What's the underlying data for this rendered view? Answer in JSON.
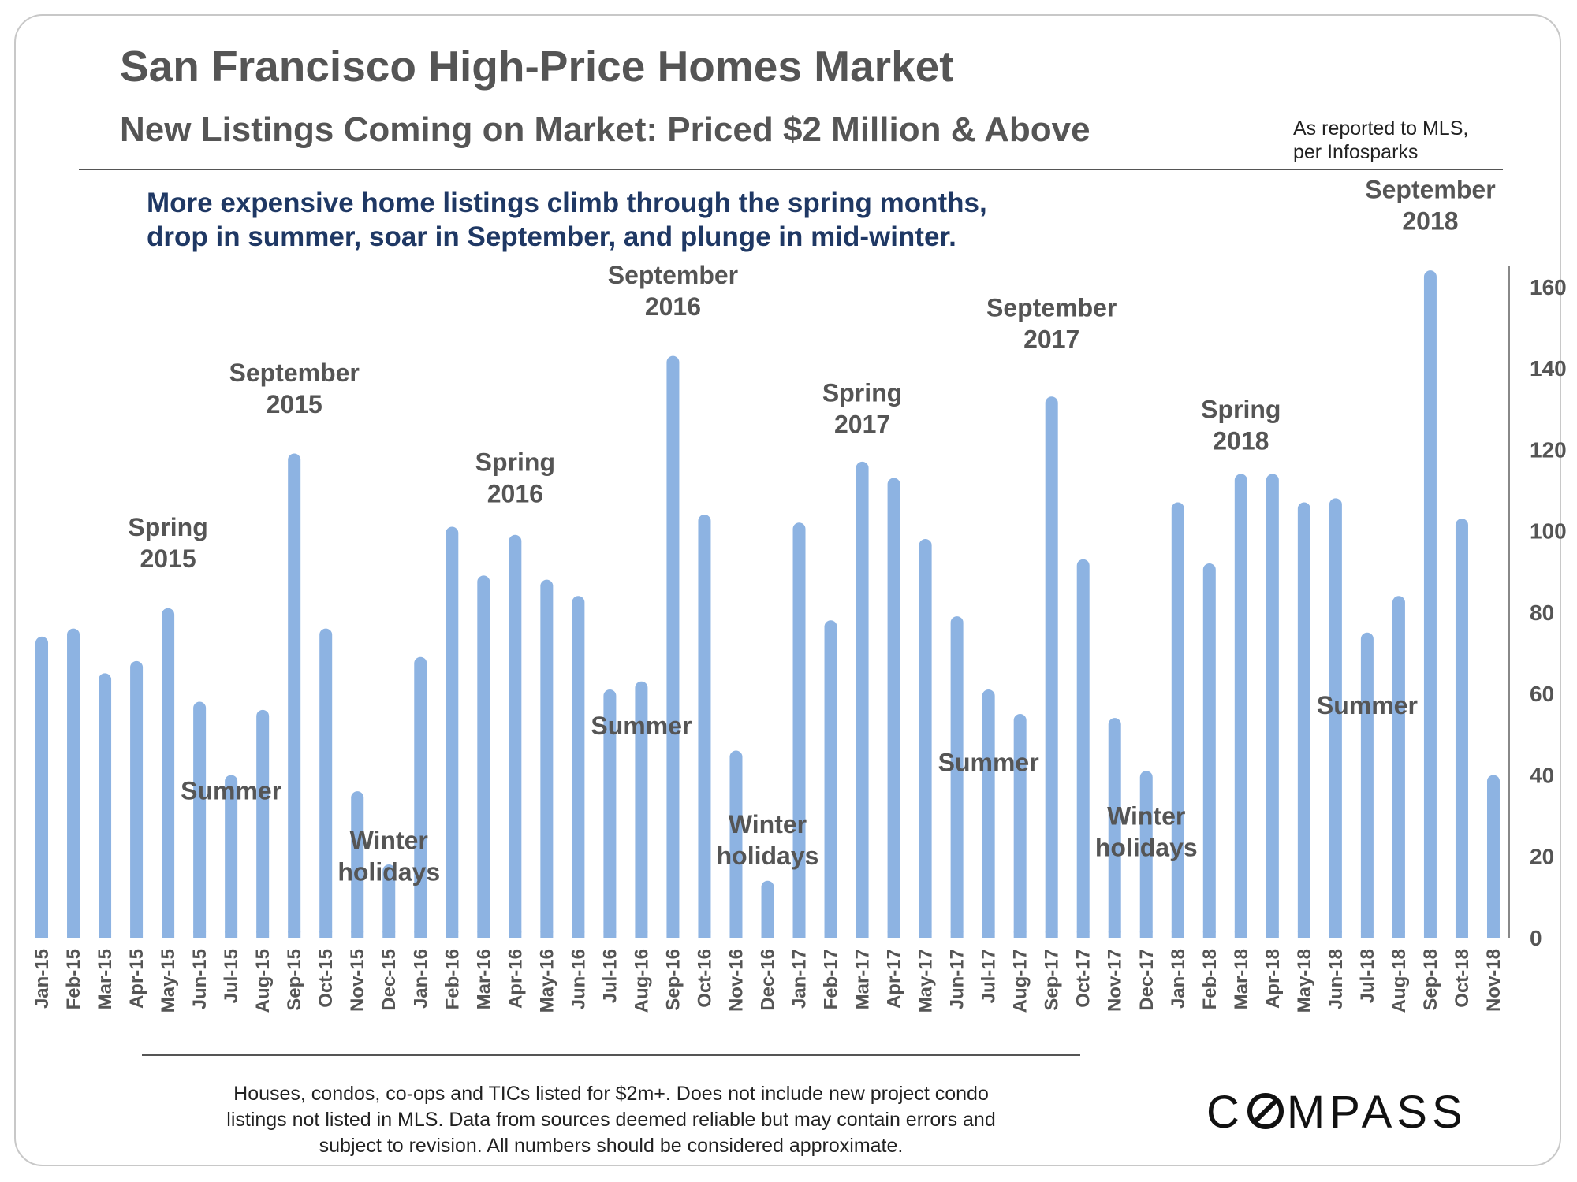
{
  "header": {
    "title": "San Francisco High-Price Homes Market",
    "subtitle": "New Listings Coming on Market: Priced $2 Million & Above",
    "source_line1": "As reported to MLS,",
    "source_line2": "per Infosparks",
    "headline_line1": "More expensive home listings climb through the spring months,",
    "headline_line2": "drop in summer, soar in September, and plunge in mid-winter."
  },
  "footer": {
    "footnote_line1": "Houses, condos, co-ops and TICs listed for $2m+. Does not include new project condo",
    "footnote_line2": "listings not listed in MLS. Data from sources deemed reliable but may contain errors and",
    "footnote_line3": "subject to revision.  All numbers should be considered approximate.",
    "logo_start": "C",
    "logo_end": "MPASS"
  },
  "colors": {
    "bar": "#8db3e2",
    "text": "#555555",
    "headline": "#1f3864"
  },
  "chart_data": {
    "type": "bar",
    "title": "San Francisco High-Price Homes Market",
    "xlabel": "",
    "ylabel": "",
    "ylim": [
      0,
      165
    ],
    "yticks": [
      0,
      20,
      40,
      60,
      80,
      100,
      120,
      140,
      160
    ],
    "grid": false,
    "categories": [
      "Jan-15",
      "Feb-15",
      "Mar-15",
      "Apr-15",
      "May-15",
      "Jun-15",
      "Jul-15",
      "Aug-15",
      "Sep-15",
      "Oct-15",
      "Nov-15",
      "Dec-15",
      "Jan-16",
      "Feb-16",
      "Mar-16",
      "Apr-16",
      "May-16",
      "Jun-16",
      "Jul-16",
      "Aug-16",
      "Sep-16",
      "Oct-16",
      "Nov-16",
      "Dec-16",
      "Jan-17",
      "Feb-17",
      "Mar-17",
      "Apr-17",
      "May-17",
      "Jun-17",
      "Jul-17",
      "Aug-17",
      "Sep-17",
      "Oct-17",
      "Nov-17",
      "Dec-17",
      "Jan-18",
      "Feb-18",
      "Mar-18",
      "Apr-18",
      "May-18",
      "Jun-18",
      "Jul-18",
      "Aug-18",
      "Sep-18",
      "Oct-18",
      "Nov-18"
    ],
    "values": [
      74,
      76,
      65,
      68,
      81,
      58,
      40,
      56,
      119,
      76,
      36,
      18,
      69,
      101,
      89,
      99,
      88,
      84,
      61,
      63,
      143,
      104,
      46,
      14,
      102,
      78,
      117,
      113,
      98,
      79,
      61,
      55,
      133,
      93,
      54,
      41,
      107,
      92,
      114,
      114,
      107,
      108,
      75,
      84,
      164,
      103,
      40
    ],
    "annotations": [
      {
        "lines": [
          "Spring",
          "2015"
        ],
        "category": "May-15",
        "value": 91
      },
      {
        "lines": [
          "September",
          "2015"
        ],
        "category": "Sep-15",
        "value": 129
      },
      {
        "lines": [
          "Summer"
        ],
        "category": "Jul-15",
        "value": 34
      },
      {
        "lines": [
          "Winter",
          "holidays"
        ],
        "category": "Dec-15",
        "value": 14
      },
      {
        "lines": [
          "Spring",
          "2016"
        ],
        "category": "Apr-16",
        "value": 107
      },
      {
        "lines": [
          "September",
          "2016"
        ],
        "category": "Sep-16",
        "value": 153
      },
      {
        "lines": [
          "Summer"
        ],
        "category": "Aug-16",
        "value": 50
      },
      {
        "lines": [
          "Winter",
          "holidays"
        ],
        "category": "Dec-16",
        "value": 18
      },
      {
        "lines": [
          "Spring",
          "2017"
        ],
        "category": "Mar-17",
        "value": 124
      },
      {
        "lines": [
          "September",
          "2017"
        ],
        "category": "Sep-17",
        "value": 145
      },
      {
        "lines": [
          "Summer"
        ],
        "category": "Jul-17",
        "value": 41
      },
      {
        "lines": [
          "Winter",
          "holidays"
        ],
        "category": "Dec-17",
        "value": 20
      },
      {
        "lines": [
          "Spring",
          "2018"
        ],
        "category": "Mar-18",
        "value": 120
      },
      {
        "lines": [
          "September",
          "2018"
        ],
        "category": "Sep-18",
        "value": 174
      },
      {
        "lines": [
          "Summer"
        ],
        "category": "Jul-18",
        "value": 55
      }
    ]
  }
}
